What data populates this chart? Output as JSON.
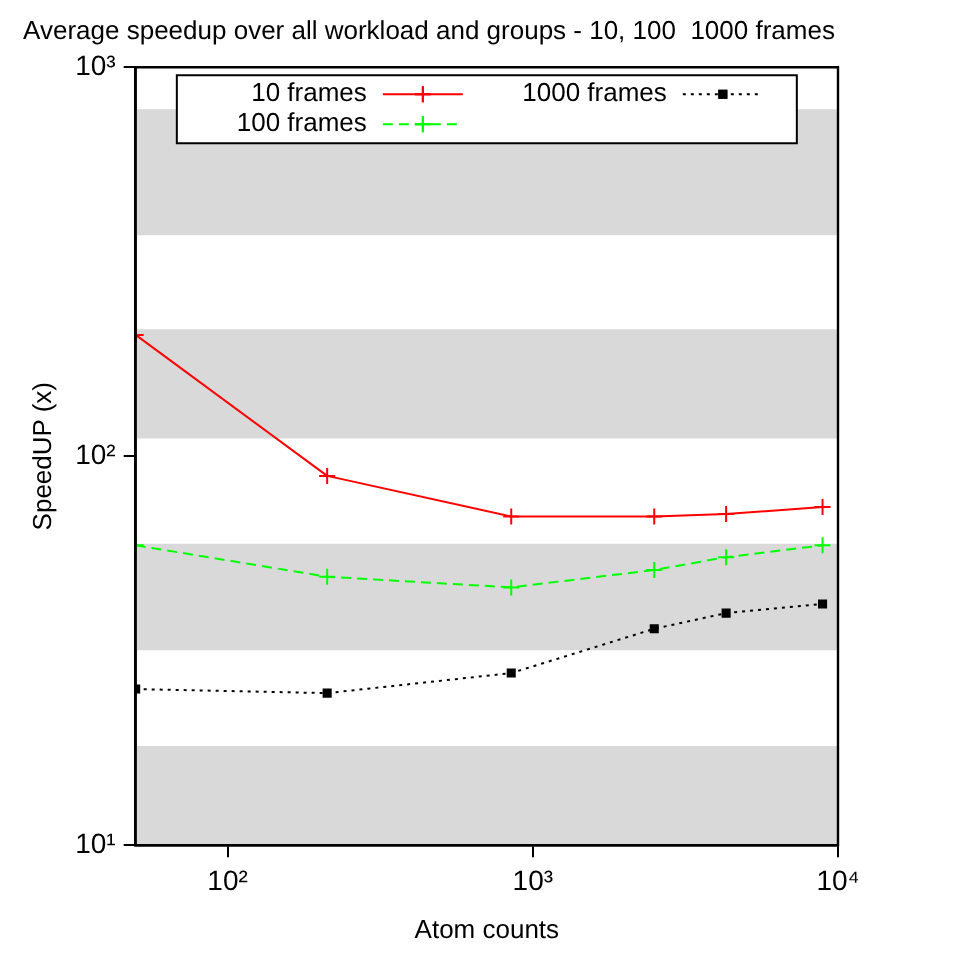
{
  "chart_data": {
    "type": "line",
    "title": "Average speedup over all workload and groups - 10, 100  1000 frames",
    "xlabel": "Atom counts",
    "ylabel": "SpeedUP (x)",
    "x": [
      50,
      212,
      850,
      2500,
      4300,
      8900
    ],
    "series": [
      {
        "name": "10 frames",
        "color": "#ff0000",
        "marker": "cross",
        "line_style": "solid",
        "values": [
          205,
          89,
          70,
          70,
          71,
          74
        ]
      },
      {
        "name": "100 frames",
        "color": "#00ff00",
        "marker": "cross",
        "line_style": "dashed",
        "values": [
          59,
          49,
          46,
          51,
          55,
          59
        ]
      },
      {
        "name": "1000 frames",
        "color": "#000000",
        "marker": "square",
        "line_style": "dotted",
        "values": [
          25.2,
          24.6,
          27.7,
          36,
          39.5,
          41.7
        ]
      }
    ],
    "log": "xy",
    "xlim": [
      50,
      10000
    ],
    "ylim": [
      10,
      1000
    ],
    "xticks": [
      {
        "value": 100,
        "label": "10²"
      },
      {
        "value": 1000,
        "label": "10³"
      },
      {
        "value": 10000,
        "label": "10⁴"
      }
    ],
    "yticks": [
      {
        "value": 10,
        "label": "10¹"
      },
      {
        "value": 100,
        "label": "10²"
      },
      {
        "value": 1000,
        "label": "10³"
      }
    ],
    "bands": [
      {
        "axis": "y",
        "from": 10,
        "to": 18,
        "color": "#d9d9d9"
      },
      {
        "axis": "y",
        "from": 31.7,
        "to": 59.6,
        "color": "#d9d9d9"
      },
      {
        "axis": "y",
        "from": 111,
        "to": 212,
        "color": "#d9d9d9"
      },
      {
        "axis": "y",
        "from": 370,
        "to": 780,
        "color": "#d9d9d9"
      }
    ],
    "grid": false,
    "legend": "top"
  }
}
